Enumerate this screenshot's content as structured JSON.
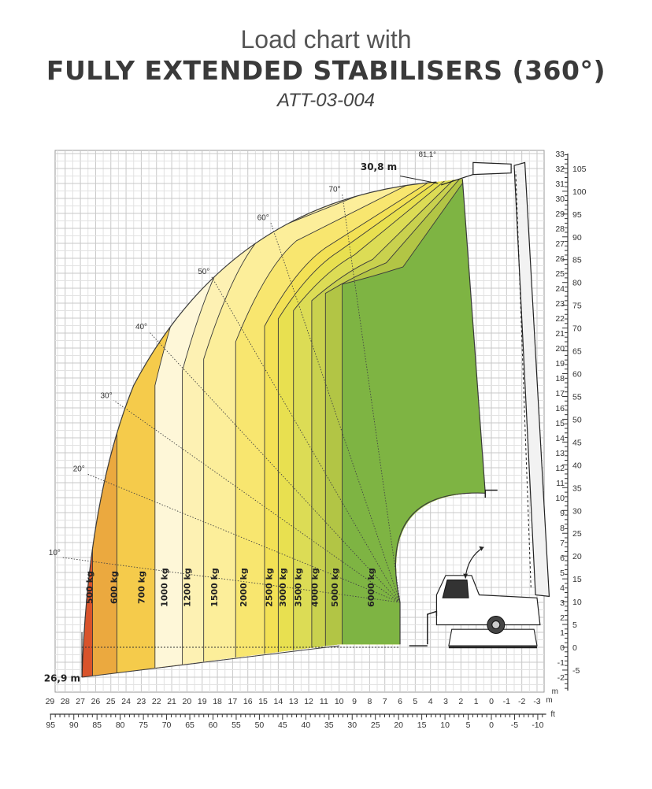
{
  "header": {
    "title_line1": "Load chart with",
    "title_line2": "FULLY EXTENDED STABILISERS (360°)",
    "model_code": "ATT-03-004"
  },
  "chart_data": {
    "type": "area",
    "title": "Load chart with FULLY EXTENDED STABILISERS (360°)",
    "subtitle": "ATT-03-004",
    "x_axis_m": {
      "ticks": [
        29,
        28,
        27,
        26,
        25,
        24,
        23,
        22,
        21,
        20,
        19,
        18,
        17,
        16,
        15,
        14,
        13,
        12,
        11,
        10,
        9,
        8,
        7,
        6,
        5,
        4,
        3,
        2,
        1,
        0,
        -1,
        -2,
        -3
      ],
      "label": "m",
      "range": [
        29,
        -3.6
      ]
    },
    "x_axis_ft": {
      "ticks": [
        95,
        90,
        85,
        80,
        75,
        70,
        65,
        60,
        55,
        50,
        45,
        40,
        35,
        30,
        25,
        20,
        15,
        10,
        5,
        0,
        -5,
        -10
      ],
      "label": "ft"
    },
    "y_axis_m": {
      "ticks": [
        33,
        32,
        31,
        30,
        29,
        28,
        27,
        26,
        25,
        24,
        23,
        22,
        21,
        20,
        19,
        18,
        17,
        16,
        15,
        14,
        13,
        12,
        11,
        10,
        9,
        8,
        7,
        6,
        5,
        4,
        3,
        2,
        1,
        0,
        -1,
        -2
      ],
      "label": "m",
      "range": [
        -2.9,
        33
      ]
    },
    "y_axis_ft": {
      "ticks": [
        105,
        100,
        95,
        90,
        85,
        80,
        75,
        70,
        65,
        60,
        55,
        50,
        45,
        40,
        35,
        30,
        25,
        20,
        15,
        10,
        5,
        0,
        -5
      ]
    },
    "grid": true,
    "max_height_label": "30,8 m",
    "max_outreach_label": "26,9 m",
    "max_angle_label": "81,1°",
    "angle_lines": [
      "10°",
      "20°",
      "30°",
      "40°",
      "50°",
      "60°",
      "70°"
    ],
    "load_zones": [
      {
        "load": "500 kg",
        "max_outreach_m": 26.9,
        "color": "#d9532b"
      },
      {
        "load": "600 kg",
        "max_outreach_m": 26.0,
        "color": "#eba93f"
      },
      {
        "load": "700 kg",
        "max_outreach_m": 24.4,
        "color": "#f5cb4b"
      },
      {
        "load": "1000 kg",
        "max_outreach_m": 22.1,
        "color": "#fef7d8"
      },
      {
        "load": "1200 kg",
        "max_outreach_m": 20.3,
        "color": "#fdf1b3"
      },
      {
        "load": "1500 kg",
        "max_outreach_m": 18.9,
        "color": "#fcee9a"
      },
      {
        "load": "2000 kg",
        "max_outreach_m": 16.8,
        "color": "#f8e66f"
      },
      {
        "load": "2500 kg",
        "max_outreach_m": 14.9,
        "color": "#f3e155"
      },
      {
        "load": "3000 kg",
        "max_outreach_m": 14.0,
        "color": "#e8e050"
      },
      {
        "load": "3500 kg",
        "max_outreach_m": 13.0,
        "color": "#dcdc55"
      },
      {
        "load": "4000 kg",
        "max_outreach_m": 11.8,
        "color": "#c9d14e"
      },
      {
        "load": "5000 kg",
        "max_outreach_m": 10.9,
        "color": "#b2c545"
      },
      {
        "load": "6000 kg",
        "max_outreach_m": 9.8,
        "color": "#7eb443"
      }
    ]
  }
}
